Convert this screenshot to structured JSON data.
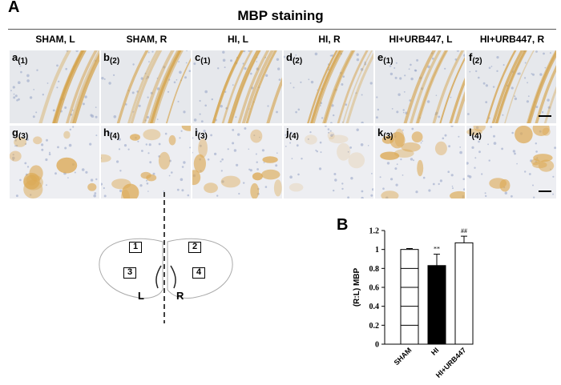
{
  "panel_a": {
    "label": "A",
    "title": "MBP staining",
    "columns": [
      "SHAM, L",
      "SHAM, R",
      "HI, L",
      "HI, R",
      "HI+URB447, L",
      "HI+URB447, R"
    ],
    "row1": [
      {
        "letter": "a",
        "region": "(1)"
      },
      {
        "letter": "b",
        "region": "(2)"
      },
      {
        "letter": "c",
        "region": "(1)"
      },
      {
        "letter": "d",
        "region": "(2)"
      },
      {
        "letter": "e",
        "region": "(1)"
      },
      {
        "letter": "f",
        "region": "(2)"
      }
    ],
    "row2": [
      {
        "letter": "g",
        "region": "(3)"
      },
      {
        "letter": "h",
        "region": "(4)"
      },
      {
        "letter": "i",
        "region": "(3)"
      },
      {
        "letter": "j",
        "region": "(4)"
      },
      {
        "letter": "k",
        "region": "(3)"
      },
      {
        "letter": "l",
        "region": "(4)"
      }
    ]
  },
  "schematic": {
    "boxes": [
      "1",
      "2",
      "3",
      "4"
    ],
    "left_label": "L",
    "right_label": "R"
  },
  "panel_b": {
    "label": "B"
  },
  "chart_data": {
    "type": "bar",
    "categories": [
      "SHAM",
      "HI",
      "HI+URB447"
    ],
    "values": [
      1.0,
      0.83,
      1.07
    ],
    "errors": [
      0.01,
      0.12,
      0.07
    ],
    "significance": [
      "",
      "**",
      "##"
    ],
    "fills": [
      "#ffffff",
      "#000000",
      "#ffffff"
    ],
    "title": "",
    "xlabel": "",
    "ylabel": "(R:L) MBP",
    "ylim": [
      0,
      1.2
    ],
    "yticks": [
      "0",
      "0.2",
      "0.4",
      "0.6",
      "0.8",
      "1",
      "1.2"
    ],
    "grid": false
  }
}
